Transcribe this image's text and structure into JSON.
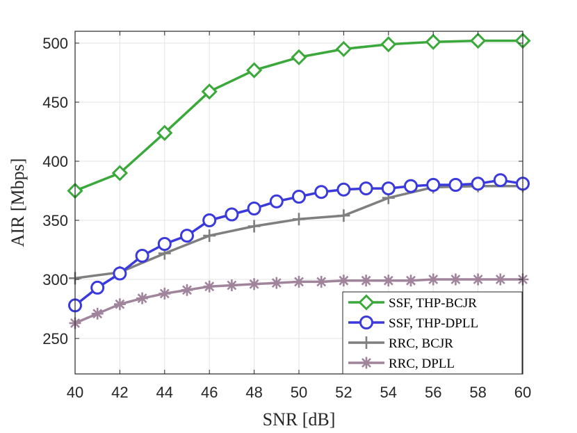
{
  "chart_data": {
    "type": "line",
    "xlabel": "SNR [dB]",
    "ylabel": "AIR [Mbps]",
    "xlim": [
      40,
      60
    ],
    "ylim": [
      220,
      510
    ],
    "xticks": [
      40,
      42,
      44,
      46,
      48,
      50,
      52,
      54,
      56,
      58,
      60
    ],
    "yticks": [
      250,
      300,
      350,
      400,
      450,
      500
    ],
    "grid": true,
    "legend_position": "bottom-right",
    "series": [
      {
        "name": "SSF, THP-BCJR",
        "color": "#3ba83b",
        "marker": "diamond",
        "points": [
          [
            40,
            375
          ],
          [
            42,
            390
          ],
          [
            44,
            424
          ],
          [
            46,
            459
          ],
          [
            48,
            477
          ],
          [
            50,
            488
          ],
          [
            52,
            495
          ],
          [
            54,
            499
          ],
          [
            56,
            501
          ],
          [
            58,
            502
          ],
          [
            60,
            502
          ]
        ]
      },
      {
        "name": "SSF, THP-DPLL",
        "color": "#3a3adc",
        "marker": "circle",
        "points": [
          [
            40,
            278
          ],
          [
            41,
            293
          ],
          [
            42,
            305
          ],
          [
            43,
            320
          ],
          [
            44,
            330
          ],
          [
            45,
            337
          ],
          [
            46,
            350
          ],
          [
            47,
            355
          ],
          [
            48,
            360
          ],
          [
            49,
            366
          ],
          [
            50,
            370
          ],
          [
            51,
            374
          ],
          [
            52,
            376
          ],
          [
            53,
            377
          ],
          [
            54,
            377
          ],
          [
            55,
            379
          ],
          [
            56,
            380
          ],
          [
            57,
            380
          ],
          [
            58,
            381
          ],
          [
            59,
            384
          ],
          [
            60,
            381
          ]
        ]
      },
      {
        "name": "RRC, BCJR",
        "color": "#7f7f7f",
        "marker": "plus",
        "points": [
          [
            40,
            301
          ],
          [
            42,
            306
          ],
          [
            44,
            322
          ],
          [
            46,
            337
          ],
          [
            48,
            345
          ],
          [
            50,
            351
          ],
          [
            52,
            354
          ],
          [
            54,
            369
          ],
          [
            56,
            378
          ],
          [
            58,
            379
          ],
          [
            60,
            379
          ]
        ]
      },
      {
        "name": "RRC, DPLL",
        "color": "#a0849c",
        "marker": "asterisk",
        "points": [
          [
            40,
            263
          ],
          [
            41,
            271
          ],
          [
            42,
            279
          ],
          [
            43,
            284
          ],
          [
            44,
            288
          ],
          [
            45,
            291
          ],
          [
            46,
            294
          ],
          [
            47,
            295
          ],
          [
            48,
            296
          ],
          [
            49,
            297
          ],
          [
            50,
            298
          ],
          [
            51,
            298
          ],
          [
            52,
            299
          ],
          [
            53,
            299
          ],
          [
            54,
            299
          ],
          [
            55,
            299
          ],
          [
            56,
            300
          ],
          [
            57,
            300
          ],
          [
            58,
            300
          ],
          [
            59,
            300
          ],
          [
            60,
            300
          ]
        ]
      }
    ]
  }
}
